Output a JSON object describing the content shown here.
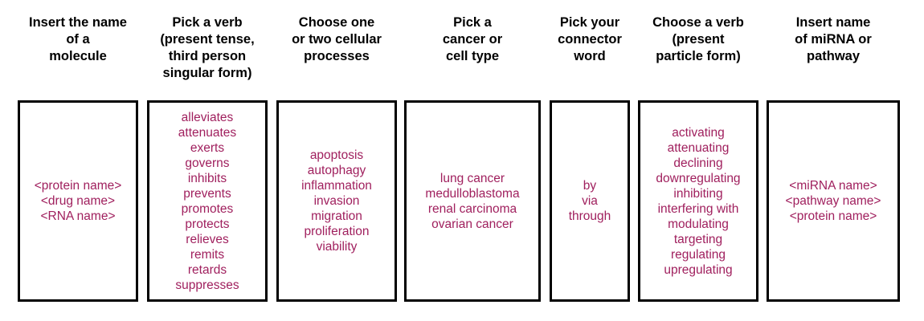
{
  "accent_color": "#a0205e",
  "columns": [
    {
      "header": "Insert the name\nof a\nmolecule",
      "items": [
        "<protein name>",
        "<drug name>",
        "<RNA name>"
      ]
    },
    {
      "header": "Pick a verb\n(present tense,\nthird person\nsingular form)",
      "items": [
        "alleviates",
        "attenuates",
        "exerts",
        "governs",
        "inhibits",
        "prevents",
        "promotes",
        "protects",
        "relieves",
        "remits",
        "retards",
        "suppresses"
      ]
    },
    {
      "header": "Choose one\nor two cellular\nprocesses",
      "items": [
        "apoptosis",
        "autophagy",
        "inflammation",
        "invasion",
        "migration",
        "proliferation",
        "viability"
      ]
    },
    {
      "header": "Pick a\ncancer or\ncell type",
      "items": [
        "lung cancer",
        "medulloblastoma",
        "renal carcinoma",
        "ovarian cancer"
      ]
    },
    {
      "header": "Pick your\nconnector\nword",
      "items": [
        "by",
        "via",
        "through"
      ]
    },
    {
      "header": "Choose a verb\n(present\nparticle form)",
      "items": [
        "activating",
        "attenuating",
        "declining",
        "downregulating",
        "inhibiting",
        "interfering with",
        "modulating",
        "targeting",
        "regulating",
        "upregulating"
      ]
    },
    {
      "header": "Insert name\nof miRNA or\npathway",
      "items": [
        "<miRNA name>",
        "<pathway name>",
        "<protein name>"
      ]
    }
  ]
}
